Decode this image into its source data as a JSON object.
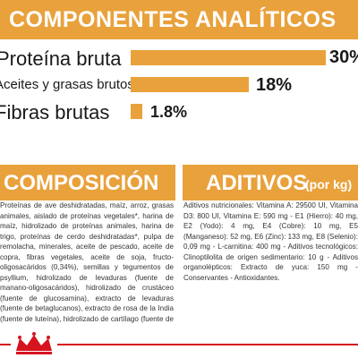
{
  "header": {
    "title": "COMPONENTES ANALÍTICOS"
  },
  "analysis": [
    {
      "label": "Proteína bruta",
      "value": "30%",
      "level": 30
    },
    {
      "label": "Aceites y grasas brutos",
      "value": "18%",
      "level": 18
    },
    {
      "label": "Fibras brutas",
      "value": "1.8%",
      "level": 1.8
    }
  ],
  "composition": {
    "title": "COMPOSICIÓN",
    "text": "Proteínas de ave deshidratadas, maíz, arroz, grasas animales, aislado de proteínas vegetales*, harina de maíz, hidrolizado de proteínas animales, harina de trigo, proteínas de cerdo deshidratadas*, pulpa de remolacha, minerales, aceite de pescado, aceite de copra, fibras vegetales, aceite de soja, fructo-oligosacáridos (0,34%), semillas y tegumentos de psyllium, hidrolizado de levaduras (fuente de manano-oligosacáridos), hidrolizado de crustáceo (fuente de glucosamina), extracto de levaduras (fuente de betaglucanos), extracto de rosa de la India (fuente de luteína), hidrolizado de cartílago (fuente de condroitina). *L.I.P.: proteínas seleccionadas por su elevada digestibilidad."
  },
  "additives": {
    "title": "ADITIVOS",
    "unit": "(por kg)",
    "text": "Aditivos nutricionales: Vitamina A: 29500 UI, Vitamina D3: 800 UI, Vitamina E: 590 mg - E1 (Hierro): 40 mg, E2 (Yodo): 4 mg, E4 (Cobre): 10 mg, E5 (Manganeso): 52 mg, E6 (Zinc): 133 mg, E8 (Selenio): 0,09 mg - L-carnitina: 400 mg - Aditivos tecnológicos: Clinoptilolita de origen sedimentario: 10 g - Aditivos organolépticos: Extracto de yuca: 150 mg - Conservantes - Antioxidantes."
  },
  "colors": {
    "accent": "#e9a13b",
    "brand_red": "#d6141e"
  },
  "icons": {
    "brand": "royal-canin-crown-icon"
  }
}
